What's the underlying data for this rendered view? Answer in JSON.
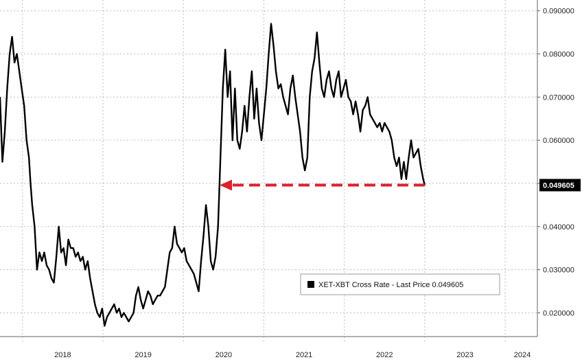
{
  "chart_data": {
    "type": "line",
    "x_ticks": [
      "2018",
      "2019",
      "2020",
      "2021",
      "2022",
      "2023",
      "2024"
    ],
    "y_ticks": [
      "0.020000",
      "0.030000",
      "0.040000",
      "0.050000",
      "0.060000",
      "0.070000",
      "0.080000",
      "0.090000"
    ],
    "ylim": [
      0.0145,
      0.0925
    ],
    "xlim": [
      2017.72,
      2024.4
    ],
    "grid": true,
    "legend_position": "bottom-right",
    "series": [
      {
        "name": "XET-XBT Cross Rate - Last Price 0.049605",
        "color": "#000000",
        "points": [
          [
            2017.72,
            0.07
          ],
          [
            2017.75,
            0.055
          ],
          [
            2017.78,
            0.062
          ],
          [
            2017.81,
            0.072
          ],
          [
            2017.84,
            0.08
          ],
          [
            2017.87,
            0.084
          ],
          [
            2017.9,
            0.078
          ],
          [
            2017.93,
            0.08
          ],
          [
            2017.96,
            0.076
          ],
          [
            2017.99,
            0.072
          ],
          [
            2018.02,
            0.068
          ],
          [
            2018.05,
            0.06
          ],
          [
            2018.08,
            0.056
          ],
          [
            2018.1,
            0.05
          ],
          [
            2018.12,
            0.045
          ],
          [
            2018.15,
            0.04
          ],
          [
            2018.18,
            0.03
          ],
          [
            2018.21,
            0.034
          ],
          [
            2018.24,
            0.032
          ],
          [
            2018.27,
            0.034
          ],
          [
            2018.3,
            0.031
          ],
          [
            2018.33,
            0.03
          ],
          [
            2018.36,
            0.028
          ],
          [
            2018.39,
            0.027
          ],
          [
            2018.42,
            0.033
          ],
          [
            2018.45,
            0.04
          ],
          [
            2018.48,
            0.034
          ],
          [
            2018.51,
            0.035
          ],
          [
            2018.54,
            0.031
          ],
          [
            2018.57,
            0.037
          ],
          [
            2018.6,
            0.035
          ],
          [
            2018.63,
            0.035
          ],
          [
            2018.66,
            0.033
          ],
          [
            2018.69,
            0.034
          ],
          [
            2018.72,
            0.032
          ],
          [
            2018.75,
            0.033
          ],
          [
            2018.78,
            0.03
          ],
          [
            2018.81,
            0.032
          ],
          [
            2018.84,
            0.028
          ],
          [
            2018.87,
            0.025
          ],
          [
            2018.9,
            0.022
          ],
          [
            2018.93,
            0.02
          ],
          [
            2018.96,
            0.019
          ],
          [
            2018.99,
            0.021
          ],
          [
            2019.02,
            0.017
          ],
          [
            2019.05,
            0.019
          ],
          [
            2019.08,
            0.02
          ],
          [
            2019.11,
            0.021
          ],
          [
            2019.14,
            0.022
          ],
          [
            2019.17,
            0.02
          ],
          [
            2019.2,
            0.021
          ],
          [
            2019.23,
            0.019
          ],
          [
            2019.26,
            0.02
          ],
          [
            2019.29,
            0.019
          ],
          [
            2019.32,
            0.018
          ],
          [
            2019.35,
            0.019
          ],
          [
            2019.38,
            0.02
          ],
          [
            2019.41,
            0.024
          ],
          [
            2019.44,
            0.026
          ],
          [
            2019.47,
            0.023
          ],
          [
            2019.5,
            0.021
          ],
          [
            2019.53,
            0.023
          ],
          [
            2019.56,
            0.025
          ],
          [
            2019.59,
            0.024
          ],
          [
            2019.62,
            0.022
          ],
          [
            2019.65,
            0.023
          ],
          [
            2019.68,
            0.024
          ],
          [
            2019.71,
            0.024
          ],
          [
            2019.74,
            0.025
          ],
          [
            2019.77,
            0.026
          ],
          [
            2019.8,
            0.03
          ],
          [
            2019.83,
            0.034
          ],
          [
            2019.86,
            0.035
          ],
          [
            2019.89,
            0.04
          ],
          [
            2019.92,
            0.036
          ],
          [
            2019.95,
            0.035
          ],
          [
            2019.98,
            0.034
          ],
          [
            2020.01,
            0.035
          ],
          [
            2020.04,
            0.032
          ],
          [
            2020.07,
            0.031
          ],
          [
            2020.1,
            0.03
          ],
          [
            2020.13,
            0.029
          ],
          [
            2020.16,
            0.027
          ],
          [
            2020.19,
            0.025
          ],
          [
            2020.22,
            0.032
          ],
          [
            2020.25,
            0.038
          ],
          [
            2020.28,
            0.045
          ],
          [
            2020.31,
            0.04
          ],
          [
            2020.34,
            0.032
          ],
          [
            2020.37,
            0.03
          ],
          [
            2020.4,
            0.033
          ],
          [
            2020.43,
            0.04
          ],
          [
            2020.46,
            0.056
          ],
          [
            2020.49,
            0.072
          ],
          [
            2020.52,
            0.081
          ],
          [
            2020.55,
            0.07
          ],
          [
            2020.58,
            0.076
          ],
          [
            2020.61,
            0.06
          ],
          [
            2020.64,
            0.072
          ],
          [
            2020.67,
            0.06
          ],
          [
            2020.7,
            0.058
          ],
          [
            2020.73,
            0.062
          ],
          [
            2020.76,
            0.068
          ],
          [
            2020.79,
            0.062
          ],
          [
            2020.82,
            0.07
          ],
          [
            2020.85,
            0.076
          ],
          [
            2020.88,
            0.065
          ],
          [
            2020.91,
            0.072
          ],
          [
            2020.94,
            0.064
          ],
          [
            2020.97,
            0.06
          ],
          [
            2021.0,
            0.066
          ],
          [
            2021.03,
            0.072
          ],
          [
            2021.06,
            0.08
          ],
          [
            2021.09,
            0.087
          ],
          [
            2021.12,
            0.082
          ],
          [
            2021.15,
            0.076
          ],
          [
            2021.18,
            0.072
          ],
          [
            2021.21,
            0.073
          ],
          [
            2021.24,
            0.07
          ],
          [
            2021.27,
            0.068
          ],
          [
            2021.3,
            0.066
          ],
          [
            2021.33,
            0.072
          ],
          [
            2021.36,
            0.075
          ],
          [
            2021.39,
            0.07
          ],
          [
            2021.42,
            0.066
          ],
          [
            2021.45,
            0.062
          ],
          [
            2021.48,
            0.056
          ],
          [
            2021.51,
            0.053
          ],
          [
            2021.54,
            0.056
          ],
          [
            2021.57,
            0.07
          ],
          [
            2021.6,
            0.076
          ],
          [
            2021.63,
            0.079
          ],
          [
            2021.66,
            0.085
          ],
          [
            2021.69,
            0.078
          ],
          [
            2021.72,
            0.072
          ],
          [
            2021.75,
            0.07
          ],
          [
            2021.78,
            0.074
          ],
          [
            2021.81,
            0.076
          ],
          [
            2021.84,
            0.072
          ],
          [
            2021.87,
            0.07
          ],
          [
            2021.9,
            0.074
          ],
          [
            2021.93,
            0.076
          ],
          [
            2021.96,
            0.07
          ],
          [
            2021.99,
            0.072
          ],
          [
            2022.02,
            0.074
          ],
          [
            2022.05,
            0.07
          ],
          [
            2022.08,
            0.069
          ],
          [
            2022.11,
            0.066
          ],
          [
            2022.14,
            0.069
          ],
          [
            2022.17,
            0.066
          ],
          [
            2022.2,
            0.062
          ],
          [
            2022.23,
            0.067
          ],
          [
            2022.26,
            0.068
          ],
          [
            2022.29,
            0.07
          ],
          [
            2022.32,
            0.066
          ],
          [
            2022.35,
            0.065
          ],
          [
            2022.38,
            0.064
          ],
          [
            2022.41,
            0.063
          ],
          [
            2022.44,
            0.064
          ],
          [
            2022.47,
            0.062
          ],
          [
            2022.5,
            0.064
          ],
          [
            2022.53,
            0.063
          ],
          [
            2022.56,
            0.062
          ],
          [
            2022.59,
            0.06
          ],
          [
            2022.62,
            0.056
          ],
          [
            2022.65,
            0.054
          ],
          [
            2022.68,
            0.056
          ],
          [
            2022.71,
            0.051
          ],
          [
            2022.74,
            0.055
          ],
          [
            2022.77,
            0.051
          ],
          [
            2022.8,
            0.056
          ],
          [
            2022.83,
            0.06
          ],
          [
            2022.86,
            0.056
          ],
          [
            2022.89,
            0.057
          ],
          [
            2022.92,
            0.058
          ],
          [
            2022.95,
            0.054
          ],
          [
            2022.98,
            0.051
          ],
          [
            2023.0,
            0.0496
          ]
        ]
      }
    ],
    "last_value": "0.049605",
    "annotation": {
      "type": "dashed-arrow",
      "y": 0.0496,
      "x_from": 2023.0,
      "x_to": 2020.45,
      "color": "#d9232e"
    },
    "legend_text": "XET-XBT Cross Rate - Last Price 0.049605"
  }
}
